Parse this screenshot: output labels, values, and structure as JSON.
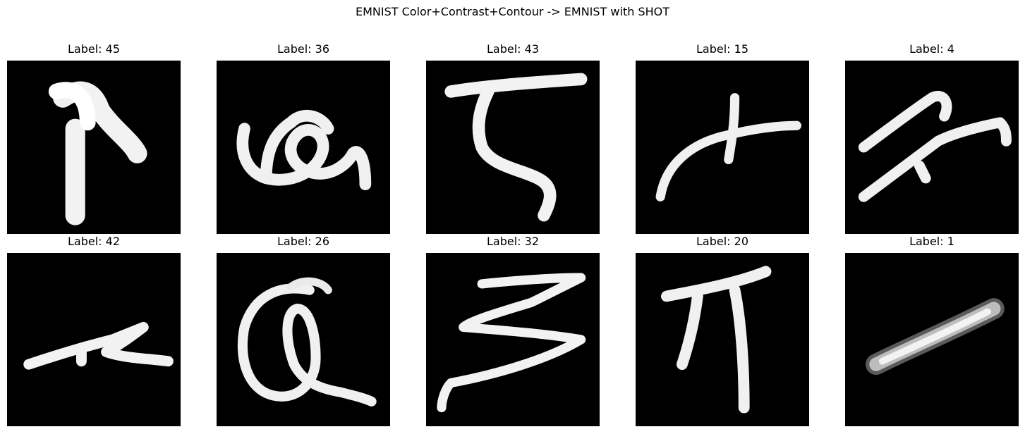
{
  "figure": {
    "title": "EMNIST Color+Contrast+Contour -> EMNIST with SHOT"
  },
  "panels": [
    {
      "label": "Label: 45",
      "glyph": "hook-stroke"
    },
    {
      "label": "Label: 36",
      "glyph": "loop-squiggle"
    },
    {
      "label": "Label: 43",
      "glyph": "z-stroke"
    },
    {
      "label": "Label: 15",
      "glyph": "cross-curve"
    },
    {
      "label": "Label: 4",
      "glyph": "double-diagonal"
    },
    {
      "label": "Label: 42",
      "glyph": "flat-z"
    },
    {
      "label": "Label: 26",
      "glyph": "loop-a"
    },
    {
      "label": "Label: 32",
      "glyph": "zigzag"
    },
    {
      "label": "Label: 20",
      "glyph": "pi-shape"
    },
    {
      "label": "Label: 1",
      "glyph": "blur-dash"
    }
  ]
}
